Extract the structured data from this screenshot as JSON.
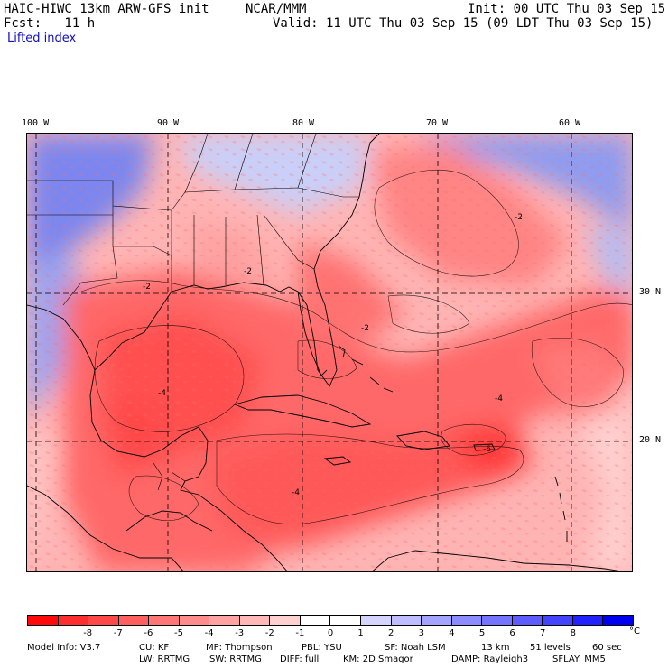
{
  "header": {
    "model_title": "HAIC-HIWC 13km ARW-GFS init",
    "center": "NCAR/MMM",
    "init": "Init: 00 UTC Thu 03 Sep 15",
    "fcst": "Fcst:   11 h",
    "valid": "Valid: 11 UTC Thu 03 Sep 15 (09 LDT Thu 03 Sep 15)",
    "field": "Lifted index"
  },
  "map": {
    "lon_labels": [
      "100 W",
      "90 W",
      "80 W",
      "70 W",
      "60 W"
    ],
    "lat_labels": [
      "30 N",
      "20 N"
    ],
    "contour_labels": [
      "-2",
      "-2",
      "-2",
      "-4",
      "-4",
      "-4",
      "-2",
      "-6"
    ]
  },
  "colorbar": {
    "colors": [
      "#ff0a0a",
      "#ff2e2e",
      "#ff4848",
      "#ff5f5f",
      "#ff7676",
      "#ff8c8c",
      "#ffa2a2",
      "#ffb8b8",
      "#ffd0d0",
      "#ffffff",
      "#ffffff",
      "#d4d4ff",
      "#bdbdff",
      "#a4a4ff",
      "#8c8cff",
      "#7474ff",
      "#5c5cff",
      "#4444ff",
      "#2222ff",
      "#0000f0"
    ],
    "ticks": [
      "-8",
      "-7",
      "-6",
      "-5",
      "-4",
      "-3",
      "-2",
      "-1",
      "0",
      "1",
      "2",
      "3",
      "4",
      "5",
      "6",
      "7",
      "8"
    ],
    "unit": "°C"
  },
  "model_info": {
    "line1": [
      "Model Info: V3.7",
      "CU: KF",
      "MP: Thompson",
      "PBL: YSU",
      "SF: Noah LSM",
      "13 km",
      "51 levels",
      "60 sec"
    ],
    "line2": [
      "LW: RRTMG",
      "SW: RRTMG",
      "DIFF: full",
      "KM: 2D Smagor",
      "DAMP: Rayleigh3",
      "SFLAY: MM5"
    ]
  }
}
